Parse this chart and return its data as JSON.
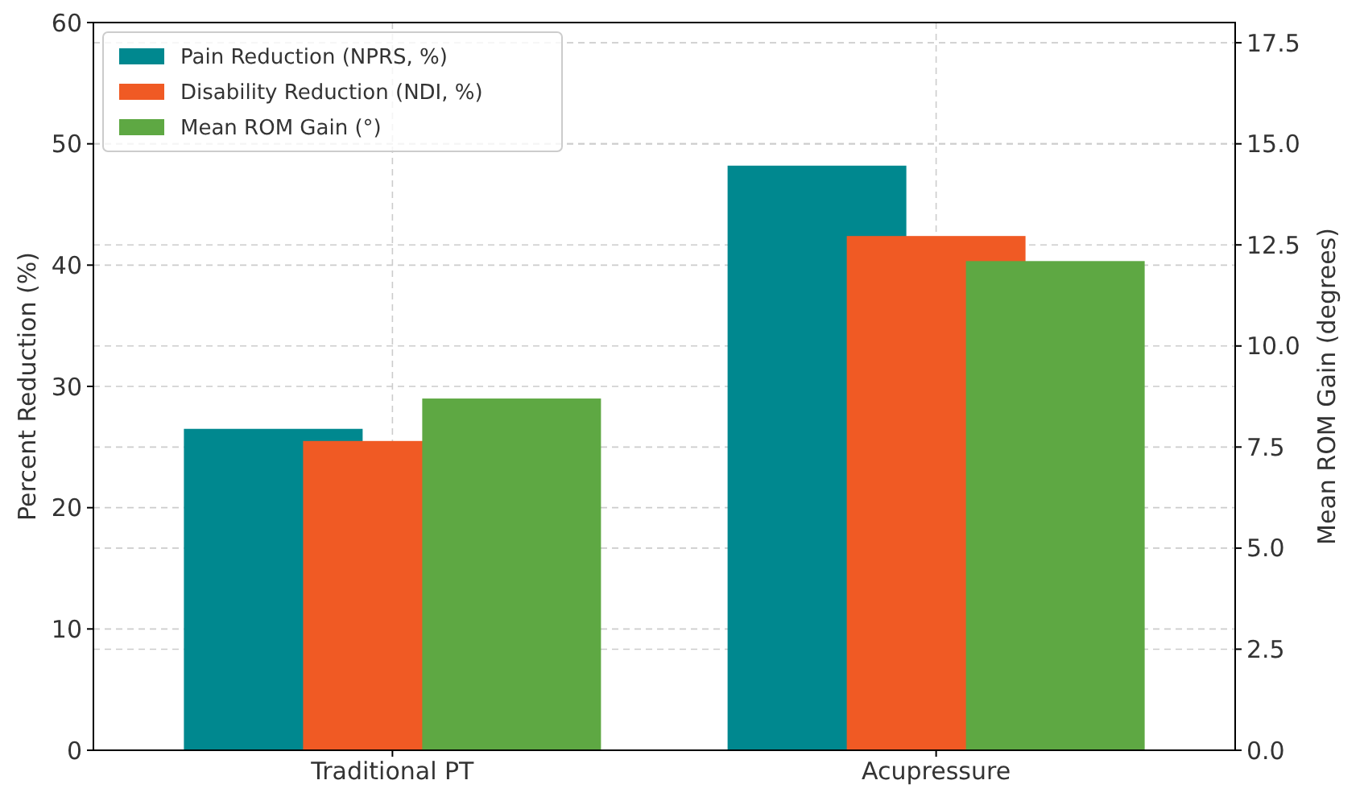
{
  "chart_data": {
    "type": "bar",
    "categories": [
      "Traditional PT",
      "Acupressure"
    ],
    "series": [
      {
        "name": "Pain Reduction (NPRS, %)",
        "color": "#00888f",
        "values": [
          26.5,
          48.2
        ]
      },
      {
        "name": "Disability Reduction (NDI, %)",
        "color": "#f05a24",
        "values": [
          25.5,
          42.4
        ]
      },
      {
        "name": "Mean ROM Gain (°)",
        "color": "#5ea843",
        "values": [
          8.7,
          12.1
        ],
        "axis": "y2"
      }
    ],
    "ylabel": "Percent Reduction (%)",
    "y2label": "Mean ROM Gain (degrees)",
    "ylim": [
      0,
      60
    ],
    "yticks": [
      0,
      10,
      20,
      30,
      40,
      50,
      60
    ],
    "y2lim": [
      0,
      18
    ],
    "y2ticks": [
      {
        "value": 0,
        "label": "0.0"
      },
      {
        "value": 2.5,
        "label": "2.5"
      },
      {
        "value": 5,
        "label": "5.0"
      },
      {
        "value": 7.5,
        "label": "7.5"
      },
      {
        "value": 10,
        "label": "10.0"
      },
      {
        "value": 12.5,
        "label": "12.5"
      },
      {
        "value": 15,
        "label": "15.0"
      },
      {
        "value": 17.5,
        "label": "17.5"
      }
    ],
    "grid": true,
    "legend": "top left"
  }
}
